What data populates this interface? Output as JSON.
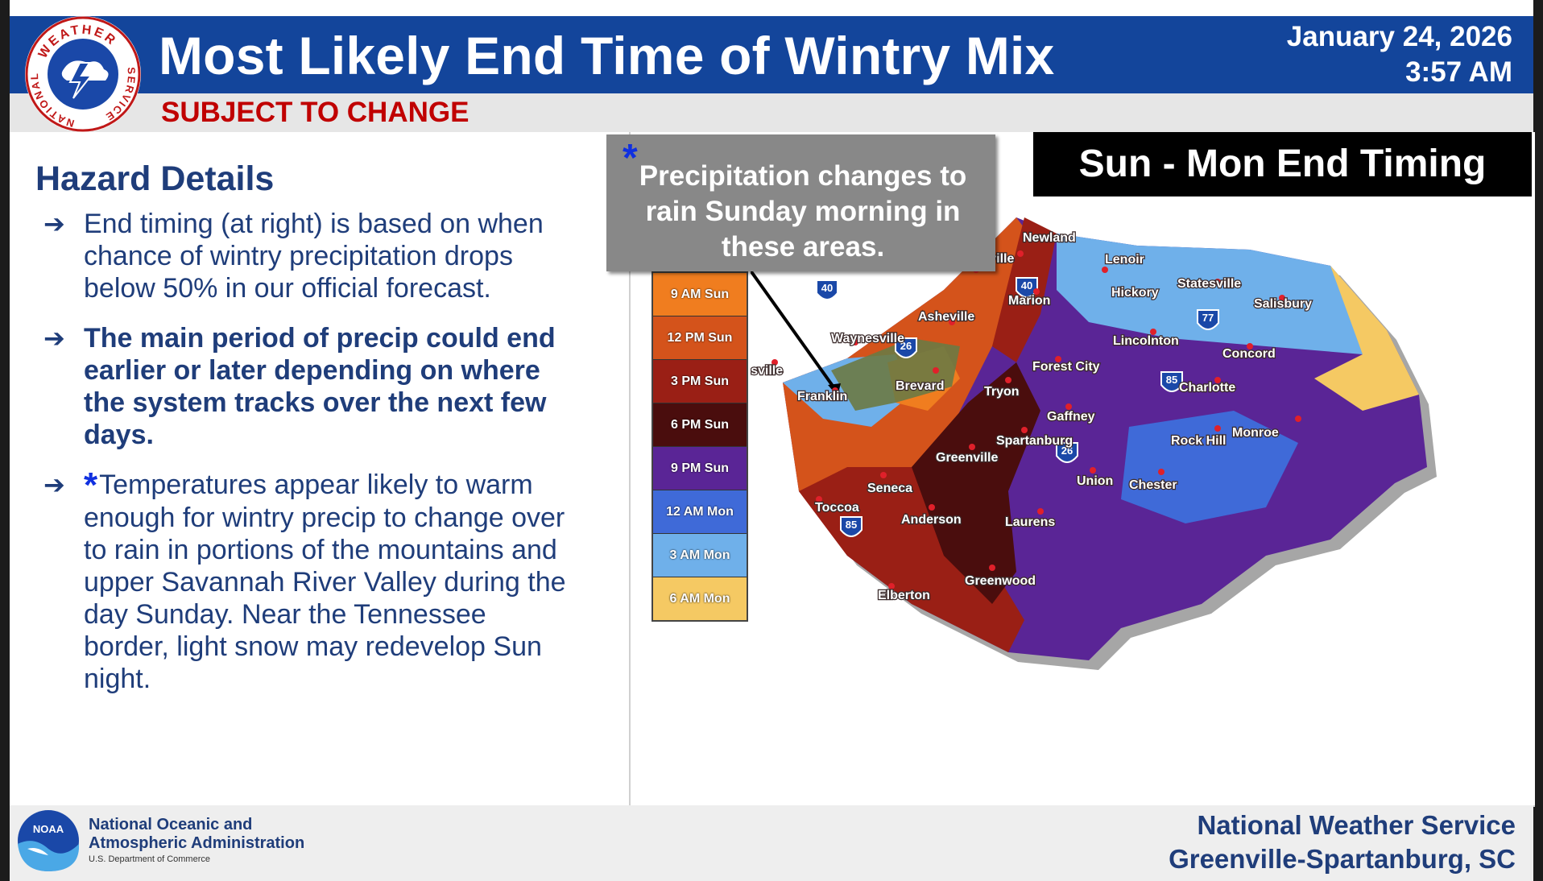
{
  "header": {
    "title": "Most Likely End Time of Wintry Mix",
    "subtitle": "SUBJECT TO CHANGE",
    "date": "January 24, 2026",
    "time": "3:57 AM",
    "logo_top_text": "WEATHER",
    "logo_left_text": "NATIONAL",
    "logo_right_text": "SERVICE"
  },
  "hazard": {
    "heading": "Hazard Details",
    "bullets": [
      "End timing (at right) is based on when chance of wintry precipitation drops below 50% in our official forecast.",
      "The main period of precip could end earlier or later depending on where the system tracks over the next few days.",
      "Temperatures appear likely to warm enough for wintry precip to change over to rain in portions of the mountains and upper Savannah River Valley during the day Sunday. Near the Tennessee border, light snow may redevelop Sun night."
    ],
    "star": "*"
  },
  "map": {
    "title": "Sun - Mon End Timing",
    "callout": "Precipitation changes to rain Sunday morning in these areas.",
    "legend": [
      {
        "label": "9 AM Sun",
        "color": "#f07d1f"
      },
      {
        "label": "12 PM Sun",
        "color": "#d4531b"
      },
      {
        "label": "3 PM Sun",
        "color": "#9a1f15"
      },
      {
        "label": "6 PM Sun",
        "color": "#4a0d0d"
      },
      {
        "label": "9 PM Sun",
        "color": "#5a2596"
      },
      {
        "label": "12 AM Mon",
        "color": "#3f6ad8"
      },
      {
        "label": "3 AM Mon",
        "color": "#6fb0ea"
      },
      {
        "label": "6 AM Mon",
        "color": "#f5c963"
      }
    ],
    "cities": [
      "Newland",
      "Burnsville",
      "Lenoir",
      "Statesville",
      "Hickory",
      "Salisbury",
      "Marion",
      "Asheville",
      "Waynesville",
      "Robbinsville",
      "Franklin",
      "Brevard",
      "Forest City",
      "Tryon",
      "Lincolnton",
      "Concord",
      "Charlotte",
      "Gaffney",
      "Spartanburg",
      "Greenville",
      "Rock Hill",
      "Monroe",
      "Union",
      "Chester",
      "Seneca",
      "Toccoa",
      "Anderson",
      "Laurens",
      "Greenwood",
      "Elberton"
    ],
    "interstates": [
      "40",
      "40",
      "77",
      "26",
      "85",
      "26",
      "85"
    ]
  },
  "footer": {
    "org_line1": "National Oceanic and",
    "org_line2": "Atmospheric Administration",
    "org_sub": "U.S. Department of Commerce",
    "noaa_mark": "NOAA",
    "nws_line1": "National Weather Service",
    "nws_line2": "Greenville-Spartanburg, SC"
  }
}
